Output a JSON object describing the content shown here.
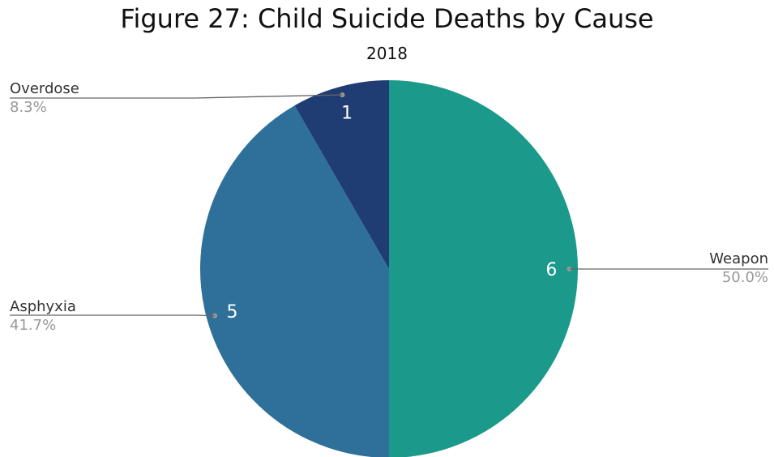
{
  "chart_data": {
    "type": "pie",
    "title": "Figure 27: Child Suicide Deaths by Cause",
    "subtitle": "2018",
    "slices": [
      {
        "label": "Weapon",
        "value": 6,
        "percent": "50.0%",
        "color": "#1b998b"
      },
      {
        "label": "Asphyxia",
        "value": 5,
        "percent": "41.7%",
        "color": "#2e709a"
      },
      {
        "label": "Overdose",
        "value": 1,
        "percent": "8.3%",
        "color": "#1f3c73"
      }
    ],
    "start": "12 o'clock",
    "direction": "clockwise"
  }
}
